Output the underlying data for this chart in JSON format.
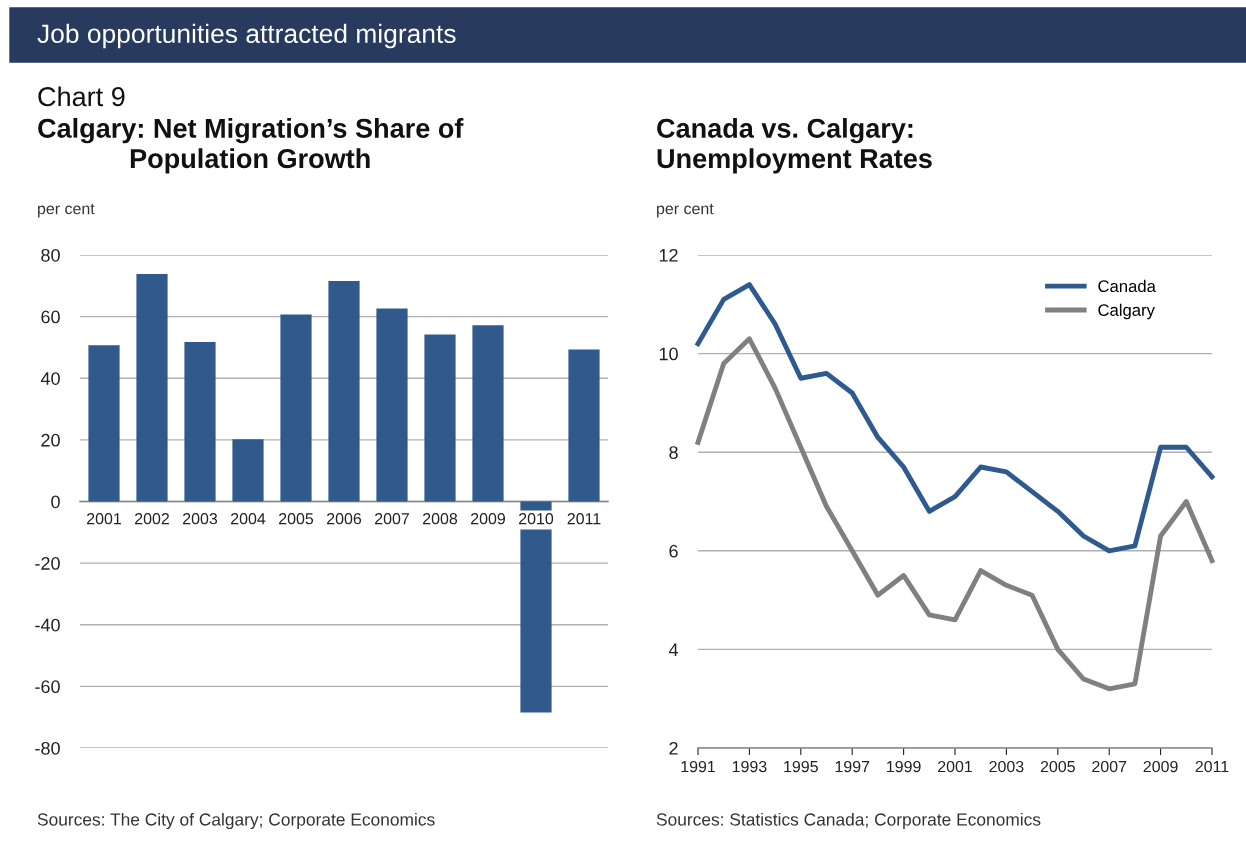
{
  "chart_data": [
    {
      "type": "bar",
      "title": "Calgary: Net Migration’s Share of\nPopulation Growth",
      "ylabel": "per cent",
      "annotations": [
        "Job opportunities attracted migrants",
        "Chart 9",
        "Sources: The City of Calgary; Corporate Economics"
      ],
      "categories": [
        "2001",
        "2002",
        "2003",
        "2004",
        "2005",
        "2006",
        "2007",
        "2008",
        "2009",
        "2010",
        "2011"
      ],
      "values": [
        50.7,
        73.8,
        51.8,
        20.2,
        60.7,
        71.6,
        62.6,
        54.2,
        57.2,
        -68.5,
        49.3
      ],
      "color": "#305a8c",
      "ylim": [
        -80,
        80
      ],
      "yticks": [
        -80,
        -60,
        -40,
        -20,
        0,
        20,
        40,
        60,
        80
      ],
      "grid": "y",
      "legend": false
    },
    {
      "type": "line",
      "title": "Canada vs. Calgary:\nUnemployment Rates",
      "ylabel": "per cent",
      "annotations": [
        "Sources: Statistics Canada; Corporate Economics"
      ],
      "categories": [
        "1991",
        null,
        "1993",
        null,
        "1995",
        null,
        "1997",
        null,
        "1999",
        null,
        "2001",
        null,
        "2003",
        null,
        "2005",
        null,
        "2007",
        null,
        "2009",
        null,
        "2011"
      ],
      "series": [
        {
          "name": "Canada",
          "color": "#2f5a8f",
          "values": [
            10.2,
            11.1,
            11.4,
            10.6,
            9.5,
            9.6,
            9.2,
            8.3,
            7.7,
            6.8,
            7.1,
            7.7,
            7.6,
            7.2,
            6.8,
            6.3,
            6.0,
            6.1,
            8.1,
            8.1,
            7.5
          ]
        },
        {
          "name": "Calgary",
          "color": "#808080",
          "values": [
            8.2,
            9.8,
            10.3,
            9.3,
            8.1,
            6.9,
            6.0,
            5.1,
            5.5,
            4.7,
            4.6,
            5.6,
            5.3,
            5.1,
            4.0,
            3.4,
            3.2,
            3.3,
            6.3,
            7.0,
            5.8
          ]
        }
      ],
      "ylim": [
        2,
        12
      ],
      "yticks": [
        2,
        4,
        6,
        8,
        10,
        12
      ],
      "grid": "y",
      "legend": "top right"
    }
  ]
}
